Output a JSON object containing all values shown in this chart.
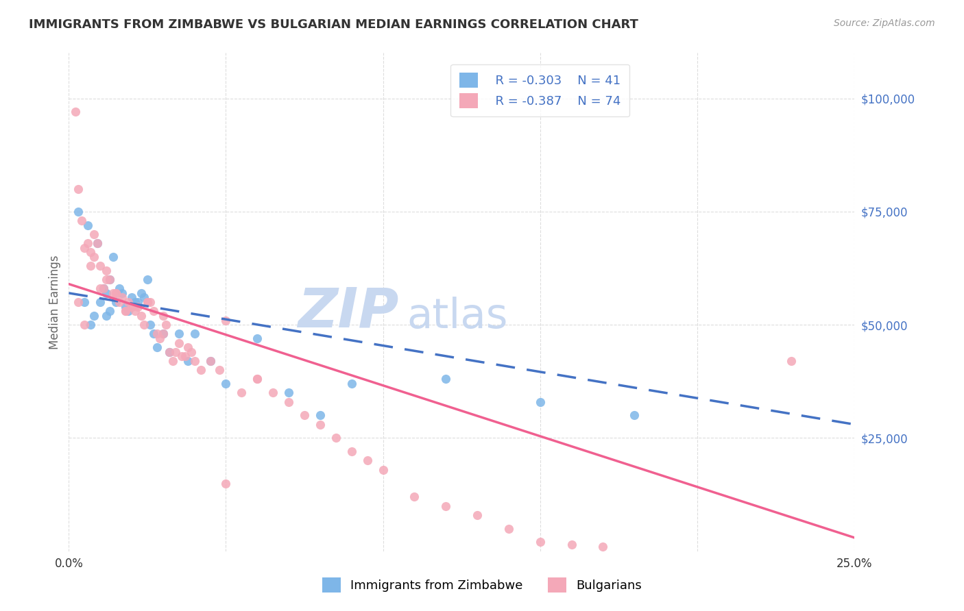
{
  "title": "IMMIGRANTS FROM ZIMBABWE VS BULGARIAN MEDIAN EARNINGS CORRELATION CHART",
  "source": "Source: ZipAtlas.com",
  "ylabel": "Median Earnings",
  "y_ticks": [
    25000,
    50000,
    75000,
    100000
  ],
  "y_tick_labels": [
    "$25,000",
    "$50,000",
    "$75,000",
    "$100,000"
  ],
  "x_ticks": [
    0.0,
    0.05,
    0.1,
    0.15,
    0.2,
    0.25
  ],
  "xlim": [
    0.0,
    0.25
  ],
  "ylim": [
    0,
    110000
  ],
  "legend_r1": "R = -0.303",
  "legend_n1": "N = 41",
  "legend_r2": "R = -0.387",
  "legend_n2": "N = 74",
  "legend_label1": "Immigrants from Zimbabwe",
  "legend_label2": "Bulgarians",
  "color_blue": "#7EB6E8",
  "color_pink": "#F4A8B8",
  "color_blue_line": "#4472C4",
  "color_pink_line": "#F06090",
  "color_blue_text": "#4472C4",
  "watermark_color": "#C8D8F0",
  "background_color": "#FFFFFF",
  "grid_color": "#DDDDDD",
  "blue_x": [
    0.003,
    0.005,
    0.006,
    0.007,
    0.008,
    0.009,
    0.01,
    0.011,
    0.012,
    0.012,
    0.013,
    0.013,
    0.014,
    0.015,
    0.016,
    0.017,
    0.018,
    0.019,
    0.02,
    0.021,
    0.022,
    0.023,
    0.024,
    0.025,
    0.026,
    0.027,
    0.028,
    0.03,
    0.032,
    0.035,
    0.038,
    0.04,
    0.045,
    0.05,
    0.06,
    0.07,
    0.08,
    0.09,
    0.12,
    0.15,
    0.18
  ],
  "blue_y": [
    75000,
    55000,
    72000,
    50000,
    52000,
    68000,
    55000,
    58000,
    52000,
    57000,
    53000,
    60000,
    65000,
    55000,
    58000,
    57000,
    54000,
    53000,
    56000,
    55000,
    55000,
    57000,
    56000,
    60000,
    50000,
    48000,
    45000,
    48000,
    44000,
    48000,
    42000,
    48000,
    42000,
    37000,
    47000,
    35000,
    30000,
    37000,
    38000,
    33000,
    30000
  ],
  "pink_x": [
    0.002,
    0.003,
    0.004,
    0.005,
    0.006,
    0.007,
    0.008,
    0.009,
    0.01,
    0.011,
    0.012,
    0.013,
    0.014,
    0.015,
    0.016,
    0.017,
    0.018,
    0.019,
    0.02,
    0.021,
    0.022,
    0.023,
    0.024,
    0.025,
    0.026,
    0.027,
    0.028,
    0.029,
    0.03,
    0.031,
    0.032,
    0.033,
    0.034,
    0.035,
    0.036,
    0.037,
    0.038,
    0.039,
    0.04,
    0.042,
    0.045,
    0.048,
    0.05,
    0.055,
    0.06,
    0.065,
    0.07,
    0.075,
    0.08,
    0.085,
    0.09,
    0.095,
    0.1,
    0.11,
    0.12,
    0.13,
    0.14,
    0.15,
    0.16,
    0.17,
    0.003,
    0.005,
    0.007,
    0.05,
    0.06,
    0.008,
    0.01,
    0.012,
    0.015,
    0.018,
    0.02,
    0.025,
    0.03,
    0.23
  ],
  "pink_y": [
    97000,
    80000,
    73000,
    67000,
    68000,
    66000,
    65000,
    68000,
    63000,
    58000,
    62000,
    60000,
    57000,
    57000,
    55000,
    56000,
    53000,
    55000,
    54000,
    53000,
    54000,
    52000,
    50000,
    55000,
    55000,
    53000,
    48000,
    47000,
    52000,
    50000,
    44000,
    42000,
    44000,
    46000,
    43000,
    43000,
    45000,
    44000,
    42000,
    40000,
    42000,
    40000,
    51000,
    35000,
    38000,
    35000,
    33000,
    30000,
    28000,
    25000,
    22000,
    20000,
    18000,
    12000,
    10000,
    8000,
    5000,
    2000,
    1500,
    1000,
    55000,
    50000,
    63000,
    15000,
    38000,
    70000,
    58000,
    60000,
    57000,
    53000,
    54000,
    55000,
    48000,
    42000
  ],
  "blue_trend_x": [
    0.0,
    0.25
  ],
  "blue_trend_y": [
    57000,
    28000
  ],
  "pink_trend_x": [
    0.0,
    0.25
  ],
  "pink_trend_y": [
    59000,
    3000
  ]
}
